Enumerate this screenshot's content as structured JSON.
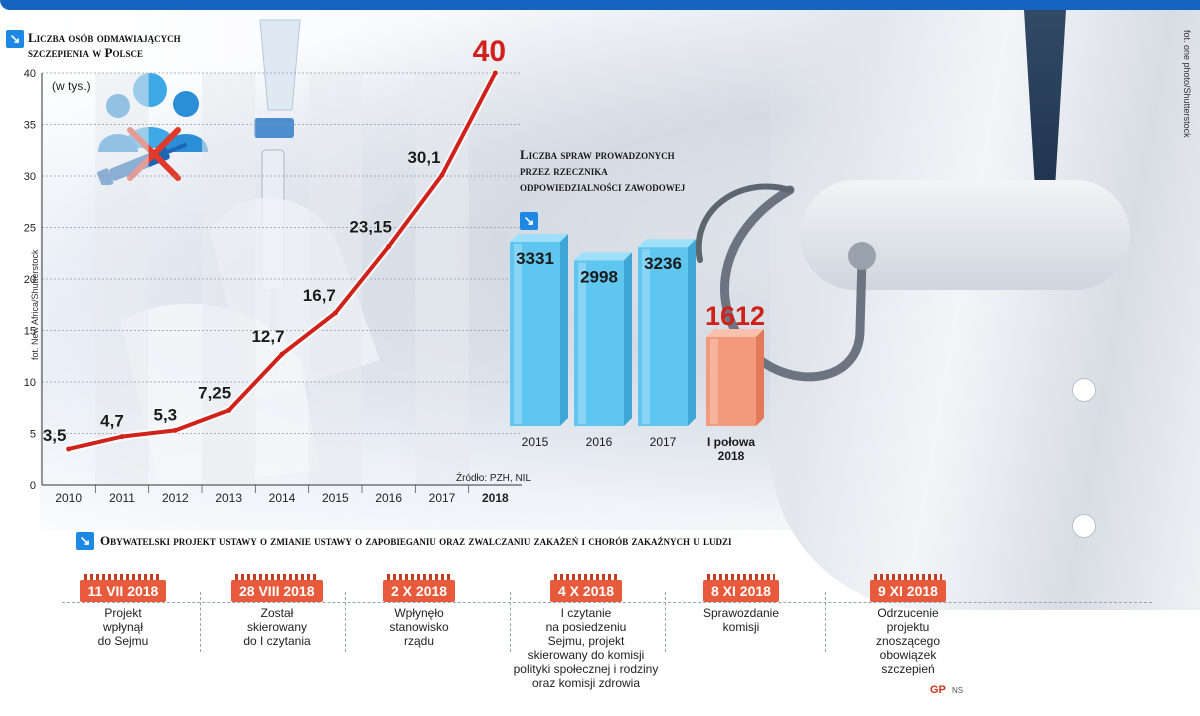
{
  "line_chart": {
    "title": "Liczba osób odmawiających szczepienia w Polsce",
    "title_lines": [
      "Liczba osób odmawiających",
      "szczepienia w Polsce"
    ],
    "unit": "(w tys.)",
    "source": "Źródło: PZH, NIL"
  },
  "bar_chart": {
    "title": "Liczba spraw prowadzonych przez rzecznika odpowiedzialności zawodowej",
    "title_lines": [
      "Liczba spraw prowadzonych",
      "przez rzecznika",
      "odpowiedzialności zawodowej"
    ]
  },
  "timeline": {
    "title": "Obywatelski projekt ustawy o zmianie ustawy o zapobieganiu oraz zwalczaniu zakażeń i chorób zakaźnych u ludzi",
    "events": [
      {
        "date": "11 VII 2018",
        "text": [
          "Projekt",
          "wpłynął",
          "do Sejmu"
        ]
      },
      {
        "date": "28 VIII 2018",
        "text": [
          "Został",
          "skierowany",
          "do I czytania"
        ]
      },
      {
        "date": "2 X 2018",
        "text": [
          "Wpłynęło",
          "stanowisko",
          "rządu"
        ]
      },
      {
        "date": "4 X 2018",
        "text": [
          "I czytanie",
          "na posiedzeniu",
          "Sejmu, projekt",
          "skierowany do komisji",
          "polityki społecznej i rodziny",
          "oraz komisji zdrowia"
        ]
      },
      {
        "date": "8 XI 2018",
        "text": [
          "Sprawozdanie",
          "komisji"
        ]
      },
      {
        "date": "9 XI 2018",
        "text": [
          "Odrzucenie",
          "projektu",
          "znoszącego",
          "obowiązek",
          "szczepień"
        ]
      }
    ]
  },
  "credits": {
    "left_photo": "fot. New Africa/Shutterstock",
    "right_photo": "fot. one photo/Shutterstock",
    "logo": "GP",
    "logo_author": "NS"
  },
  "colors": {
    "accent_blue": "#1e88e5",
    "line_red": "#d0221a",
    "bar_blue": "#5fc6f0",
    "bar_orange": "#f39a7d",
    "badge_red": "#e85a3c"
  },
  "chart_data": [
    {
      "type": "line",
      "title": "Liczba osób odmawiających szczepienia w Polsce",
      "ylabel": "(w tys.)",
      "x": [
        "2010",
        "2011",
        "2012",
        "2013",
        "2014",
        "2015",
        "2016",
        "2017",
        "2018"
      ],
      "values": [
        3.5,
        4.7,
        5.3,
        7.25,
        12.7,
        16.7,
        23.15,
        30.1,
        40
      ],
      "value_labels": [
        "3,5",
        "4,7",
        "5,3",
        "7,25",
        "12,7",
        "16,7",
        "23,15",
        "30,1",
        "40"
      ],
      "yticks": [
        0,
        5,
        10,
        15,
        20,
        25,
        30,
        35,
        40
      ],
      "ylim": [
        0,
        40
      ],
      "grid": true
    },
    {
      "type": "bar",
      "title": "Liczba spraw prowadzonych przez rzecznika odpowiedzialności zawodowej",
      "categories": [
        "2015",
        "2016",
        "2017",
        "I połowa 2018"
      ],
      "category_lines": [
        [
          "2015"
        ],
        [
          "2016"
        ],
        [
          "2017"
        ],
        [
          "I połowa",
          "2018"
        ]
      ],
      "values": [
        3331,
        2998,
        3236,
        1612
      ],
      "ylim": [
        0,
        3700
      ],
      "highlight_index": 3
    }
  ]
}
